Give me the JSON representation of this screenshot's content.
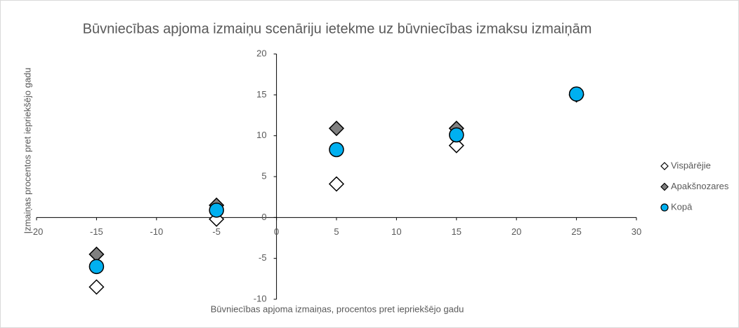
{
  "chart_data": {
    "type": "scatter",
    "title": "Būvniecības apjoma izmaiņu scenāriju ietekme uz būvniecības izmaksu izmaiņām",
    "x_label": "Būvniecības apjoma izmaiņas, procentos pret iepriekšējo gadu",
    "y_label": "Izmaiņas procentos pret iepriekšējo gadu",
    "x": [
      -15,
      -5,
      5,
      15,
      25
    ],
    "series": [
      {
        "name": "Vispārējie",
        "color": "#ffffff",
        "marker": "diamond",
        "values": [
          -8.5,
          -0.2,
          4.1,
          8.8,
          15
        ]
      },
      {
        "name": "Apakšnozares",
        "color": "#808080",
        "marker": "diamond",
        "values": [
          -4.5,
          1.5,
          10.9,
          10.9,
          15
        ]
      },
      {
        "name": "Kopā",
        "color": "#00b0f0",
        "marker": "circle",
        "values": [
          -6,
          0.9,
          8.3,
          10.1,
          15.1
        ]
      }
    ],
    "xlim": [
      -20,
      30
    ],
    "xticks": [
      -20,
      -15,
      -10,
      -5,
      0,
      5,
      10,
      15,
      20,
      25,
      30
    ],
    "ylim": [
      -10,
      20
    ],
    "yticks": [
      -10,
      -5,
      0,
      5,
      10,
      15,
      20
    ],
    "legend": "right"
  }
}
